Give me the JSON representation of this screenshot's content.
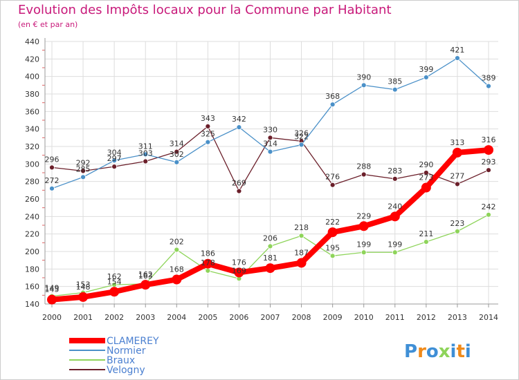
{
  "chart_data": {
    "type": "line",
    "title": "Evolution des Impôts locaux pour la Commune par Habitant",
    "subtitle": "(en € et par an)",
    "x": [
      "2000",
      "2001",
      "2002",
      "2003",
      "2004",
      "2005",
      "2006",
      "2007",
      "2008",
      "2009",
      "2010",
      "2011",
      "2012",
      "2013",
      "2014"
    ],
    "ylim": [
      140,
      440
    ],
    "yticks": [
      140,
      160,
      180,
      200,
      220,
      240,
      260,
      280,
      300,
      320,
      340,
      360,
      380,
      400,
      420,
      440
    ],
    "grid": true,
    "legend_position": "bottom-left",
    "series": [
      {
        "name": "CLAMEREY",
        "color": "#ff0000",
        "values": [
          145,
          148,
          154,
          162,
          168,
          186,
          176,
          181,
          187,
          222,
          229,
          240,
          273,
          313,
          316
        ]
      },
      {
        "name": "Normier",
        "color": "#4a90c8",
        "values": [
          272,
          285,
          304,
          311,
          302,
          325,
          342,
          314,
          322,
          368,
          390,
          385,
          399,
          421,
          389
        ]
      },
      {
        "name": "Braux",
        "color": "#8ed45a",
        "values": [
          149,
          153,
          162,
          163,
          202,
          178,
          169,
          206,
          218,
          195,
          199,
          199,
          211,
          223,
          242
        ]
      },
      {
        "name": "Velogny",
        "color": "#6b1f2a",
        "values": [
          296,
          292,
          297,
          303,
          314,
          343,
          269,
          330,
          326,
          276,
          288,
          283,
          290,
          277,
          293
        ]
      }
    ]
  },
  "logo": {
    "text": "Proxiti"
  }
}
